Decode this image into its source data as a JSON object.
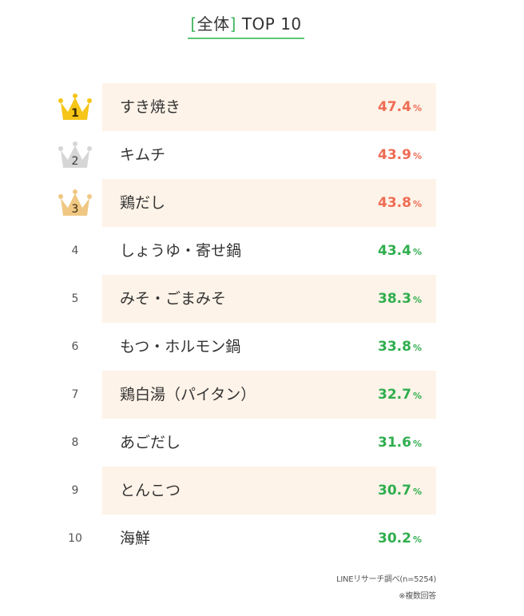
{
  "title": {
    "open_bracket": "[",
    "category": "全体",
    "close_bracket": "]",
    "label": " TOP 10"
  },
  "colors": {
    "accent_green": "#3fb55e",
    "top3_value": "#ef6c54",
    "other_value": "#2fae4e",
    "row_shade": "#fef3e8",
    "crown_gold": "#f5c518",
    "crown_silver": "#d6d6d6",
    "crown_bronze": "#f0c883"
  },
  "unit_label": "%",
  "chart_data": {
    "type": "table",
    "title": "[全体] TOP 10",
    "columns": [
      "rank",
      "item",
      "percent"
    ],
    "unit": "%",
    "rows": [
      {
        "rank": "1",
        "item": "すき焼き",
        "value": "47.4",
        "medal": "gold"
      },
      {
        "rank": "2",
        "item": "キムチ",
        "value": "43.9",
        "medal": "silver"
      },
      {
        "rank": "3",
        "item": "鶏だし",
        "value": "43.8",
        "medal": "bronze"
      },
      {
        "rank": "4",
        "item": "しょうゆ・寄せ鍋",
        "value": "43.4",
        "medal": ""
      },
      {
        "rank": "5",
        "item": "みそ・ごまみそ",
        "value": "38.3",
        "medal": ""
      },
      {
        "rank": "6",
        "item": "もつ・ホルモン鍋",
        "value": "33.8",
        "medal": ""
      },
      {
        "rank": "7",
        "item": "鶏白湯（パイタン）",
        "value": "32.7",
        "medal": ""
      },
      {
        "rank": "8",
        "item": "あごだし",
        "value": "31.6",
        "medal": ""
      },
      {
        "rank": "9",
        "item": "とんこつ",
        "value": "30.7",
        "medal": ""
      },
      {
        "rank": "10",
        "item": "海鮮",
        "value": "30.2",
        "medal": ""
      }
    ]
  },
  "footnotes": {
    "source": "LINEリサーチ調べ(n=5254)",
    "multiple": "※複数回答"
  }
}
